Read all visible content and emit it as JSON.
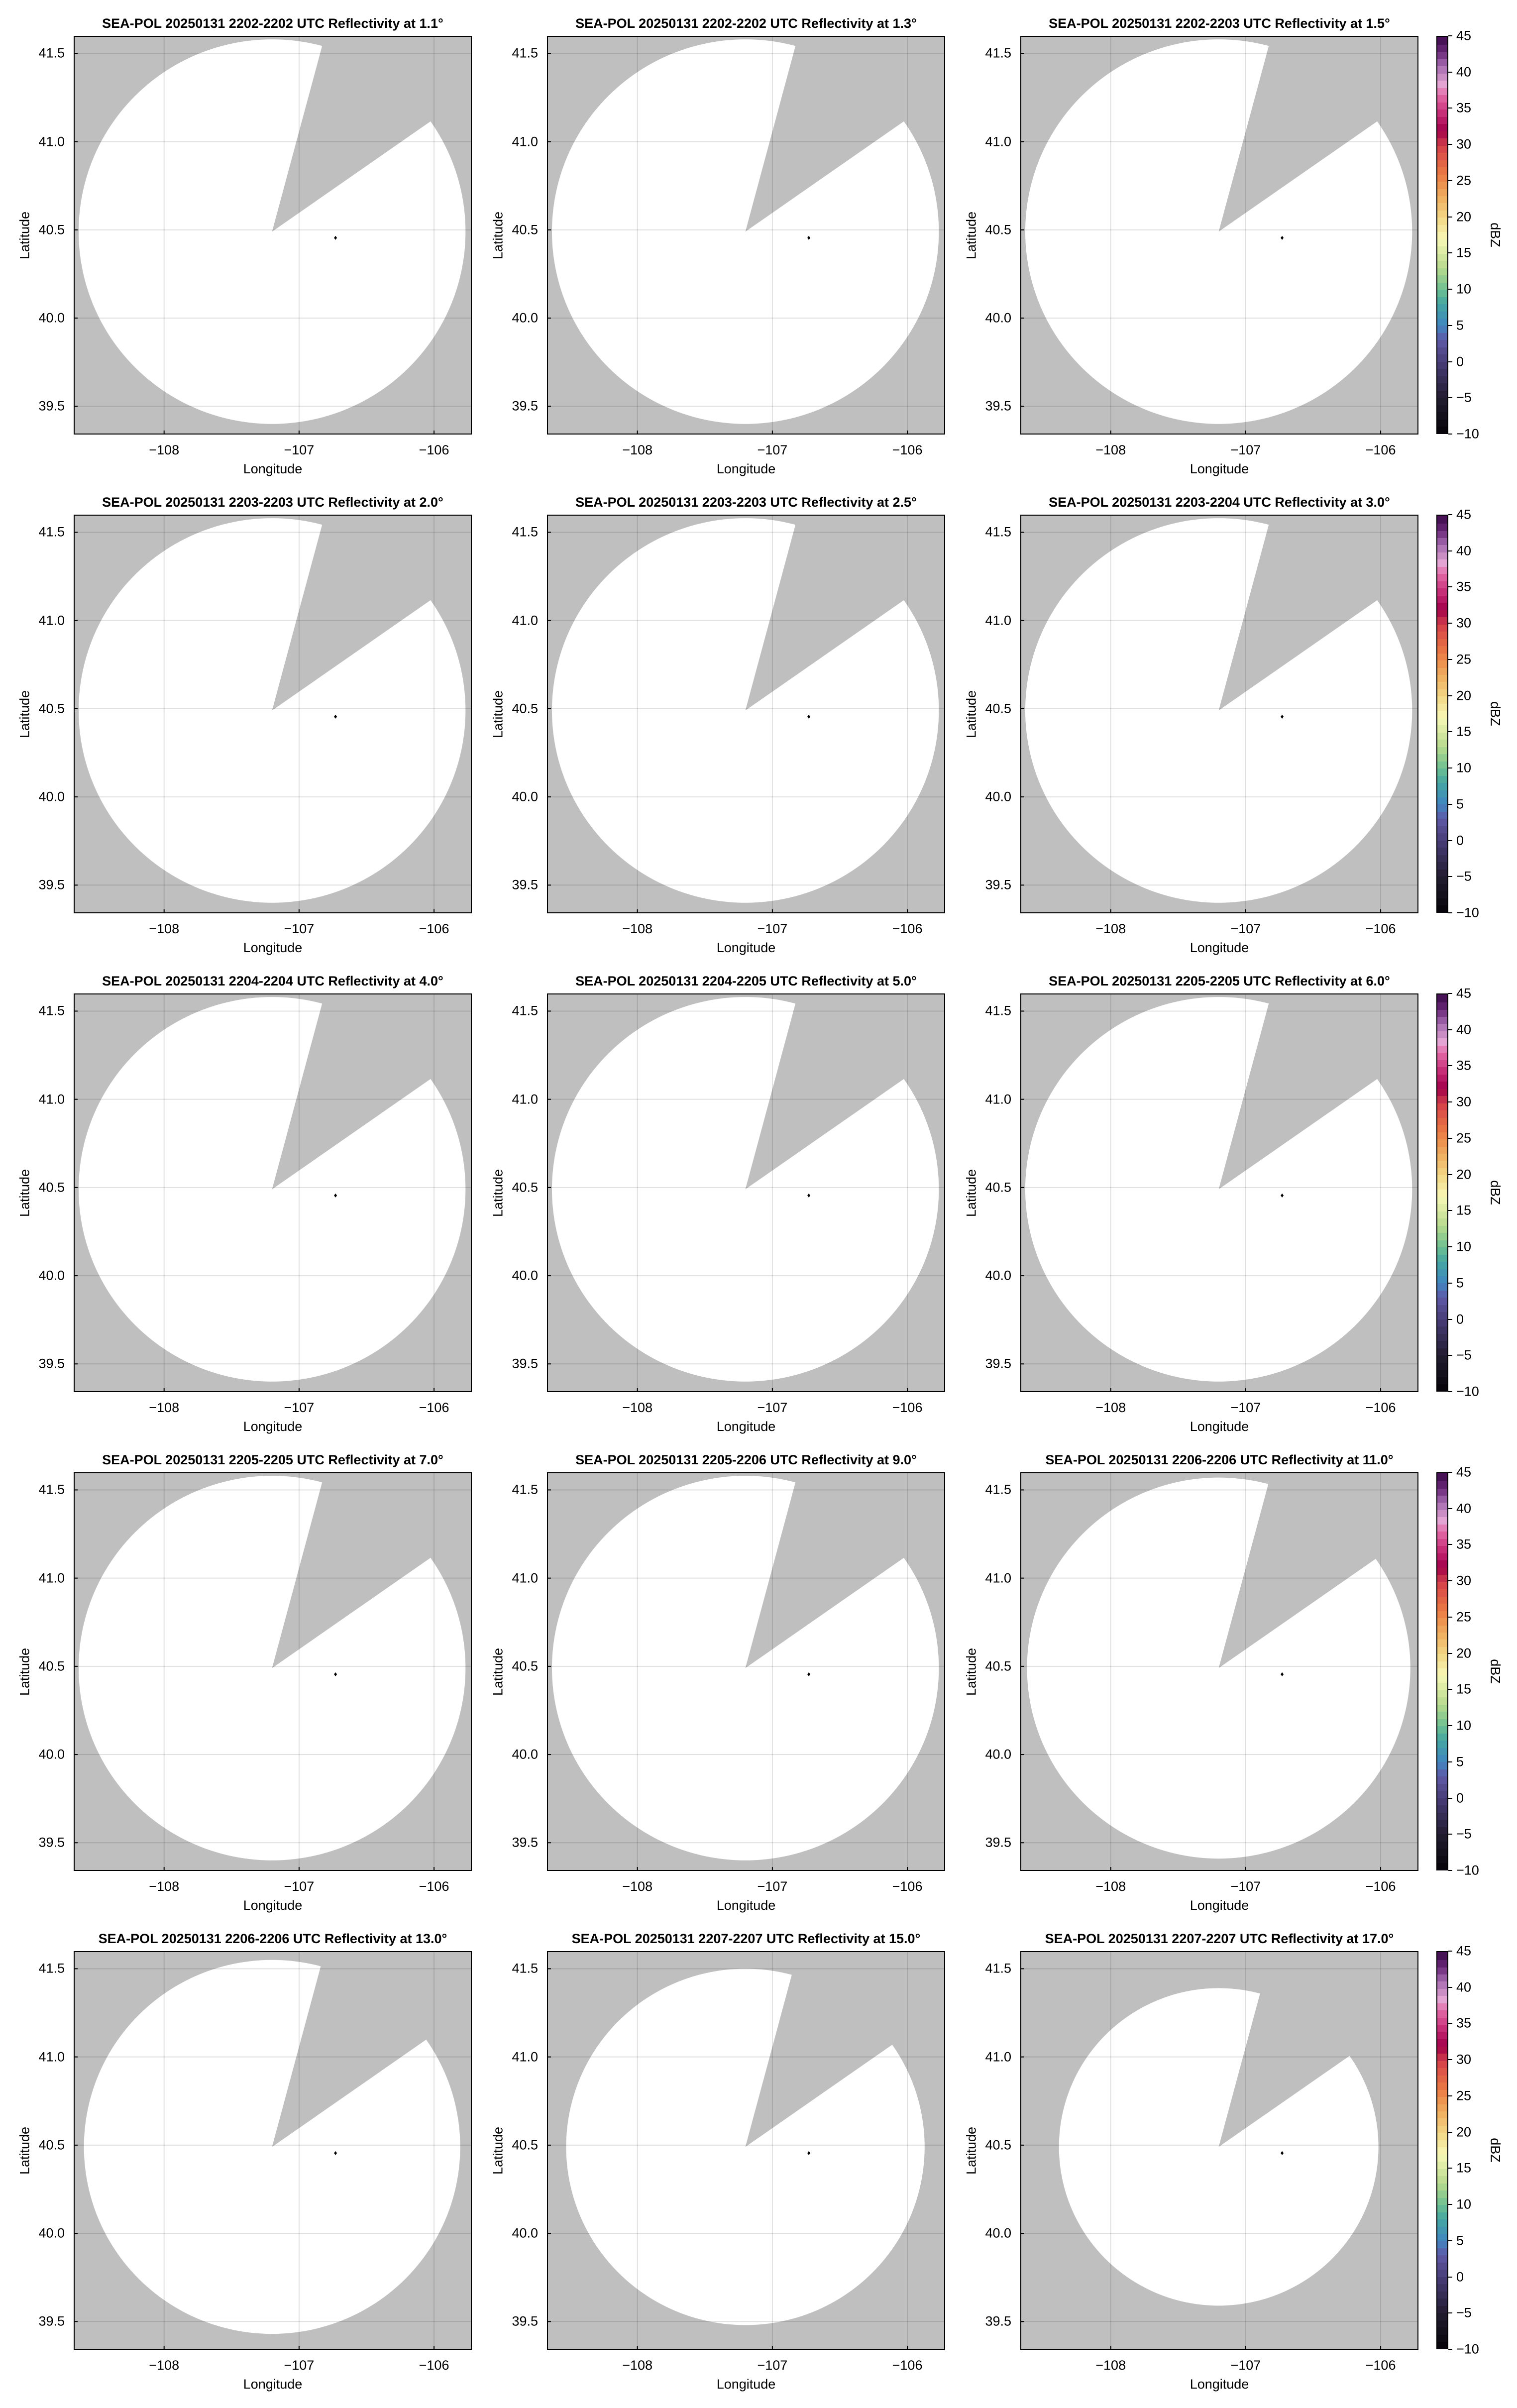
{
  "chart_data": {
    "type": "heatmap",
    "layout": "5 rows x 3 columns",
    "xlabel": "Longitude",
    "ylabel": "Latitude",
    "xlim": [
      -108.67,
      -105.72
    ],
    "ylim": [
      39.34,
      41.6
    ],
    "xticks": [
      -108,
      -107,
      -106
    ],
    "xtick_labels": [
      "−108",
      "−107",
      "−106"
    ],
    "yticks": [
      39.5,
      40.0,
      40.5,
      41.0,
      41.5
    ],
    "ytick_labels": [
      "39.5",
      "40.0",
      "40.5",
      "41.0",
      "41.5"
    ],
    "grid": true,
    "no_data_color": "#bfbfbf",
    "coverage_color": "#ffffff",
    "radar_location": {
      "lon": -107.2,
      "lat": 40.49
    },
    "blocked_sector_azimuth_deg": [
      15,
      55
    ],
    "marker": {
      "lon": -106.73,
      "lat": 40.455,
      "color": "#000000"
    },
    "colorbar": {
      "label": "dBZ",
      "range": [
        -10,
        45
      ],
      "ticks": [
        45,
        40,
        35,
        30,
        25,
        20,
        15,
        10,
        5,
        0,
        -5,
        -10
      ],
      "tick_labels": [
        "45",
        "40",
        "35",
        "30",
        "25",
        "20",
        "15",
        "10",
        "5",
        "0",
        "−5",
        "−10"
      ],
      "colormap": [
        {
          "v": -10,
          "c": "#050308"
        },
        {
          "v": -5,
          "c": "#221c30"
        },
        {
          "v": 0,
          "c": "#483d78"
        },
        {
          "v": 3,
          "c": "#5f58a6"
        },
        {
          "v": 5,
          "c": "#3f86c0"
        },
        {
          "v": 8,
          "c": "#44a6a2"
        },
        {
          "v": 10,
          "c": "#6dbf90"
        },
        {
          "v": 13,
          "c": "#b7da8e"
        },
        {
          "v": 17,
          "c": "#f8f8b6"
        },
        {
          "v": 20,
          "c": "#f2d684"
        },
        {
          "v": 23,
          "c": "#efac5e"
        },
        {
          "v": 26,
          "c": "#eb7b44"
        },
        {
          "v": 30,
          "c": "#d4404a"
        },
        {
          "v": 32,
          "c": "#a10048"
        },
        {
          "v": 34,
          "c": "#c0236e"
        },
        {
          "v": 37,
          "c": "#e36ba8"
        },
        {
          "v": 38.5,
          "c": "#e3a4d3"
        },
        {
          "v": 41,
          "c": "#a56cb0"
        },
        {
          "v": 43,
          "c": "#6a2878"
        },
        {
          "v": 45,
          "c": "#3d0a4a"
        }
      ]
    },
    "panels": [
      {
        "title": "SEA-POL 20250131 2202-2202 UTC Reflectivity at 1.1°",
        "elevation_deg": 1.1,
        "coverage_radius_deg_lat": 1.09
      },
      {
        "title": "SEA-POL 20250131 2202-2202 UTC Reflectivity at 1.3°",
        "elevation_deg": 1.3,
        "coverage_radius_deg_lat": 1.09
      },
      {
        "title": "SEA-POL 20250131 2202-2203 UTC Reflectivity at 1.5°",
        "elevation_deg": 1.5,
        "coverage_radius_deg_lat": 1.09
      },
      {
        "title": "SEA-POL 20250131 2203-2203 UTC Reflectivity at 2.0°",
        "elevation_deg": 2.0,
        "coverage_radius_deg_lat": 1.09
      },
      {
        "title": "SEA-POL 20250131 2203-2203 UTC Reflectivity at 2.5°",
        "elevation_deg": 2.5,
        "coverage_radius_deg_lat": 1.09
      },
      {
        "title": "SEA-POL 20250131 2203-2204 UTC Reflectivity at 3.0°",
        "elevation_deg": 3.0,
        "coverage_radius_deg_lat": 1.09
      },
      {
        "title": "SEA-POL 20250131 2204-2204 UTC Reflectivity at 4.0°",
        "elevation_deg": 4.0,
        "coverage_radius_deg_lat": 1.09
      },
      {
        "title": "SEA-POL 20250131 2204-2205 UTC Reflectivity at 5.0°",
        "elevation_deg": 5.0,
        "coverage_radius_deg_lat": 1.09
      },
      {
        "title": "SEA-POL 20250131 2205-2205 UTC Reflectivity at 6.0°",
        "elevation_deg": 6.0,
        "coverage_radius_deg_lat": 1.09
      },
      {
        "title": "SEA-POL 20250131 2205-2205 UTC Reflectivity at 7.0°",
        "elevation_deg": 7.0,
        "coverage_radius_deg_lat": 1.09
      },
      {
        "title": "SEA-POL 20250131 2205-2206 UTC Reflectivity at 9.0°",
        "elevation_deg": 9.0,
        "coverage_radius_deg_lat": 1.09
      },
      {
        "title": "SEA-POL 20250131 2206-2206 UTC Reflectivity at 11.0°",
        "elevation_deg": 11.0,
        "coverage_radius_deg_lat": 1.08
      },
      {
        "title": "SEA-POL 20250131 2206-2206 UTC Reflectivity at 13.0°",
        "elevation_deg": 13.0,
        "coverage_radius_deg_lat": 1.06
      },
      {
        "title": "SEA-POL 20250131 2207-2207 UTC Reflectivity at 15.0°",
        "elevation_deg": 15.0,
        "coverage_radius_deg_lat": 1.01
      },
      {
        "title": "SEA-POL 20250131 2207-2207 UTC Reflectivity at 17.0°",
        "elevation_deg": 17.0,
        "coverage_radius_deg_lat": 0.9
      }
    ]
  }
}
